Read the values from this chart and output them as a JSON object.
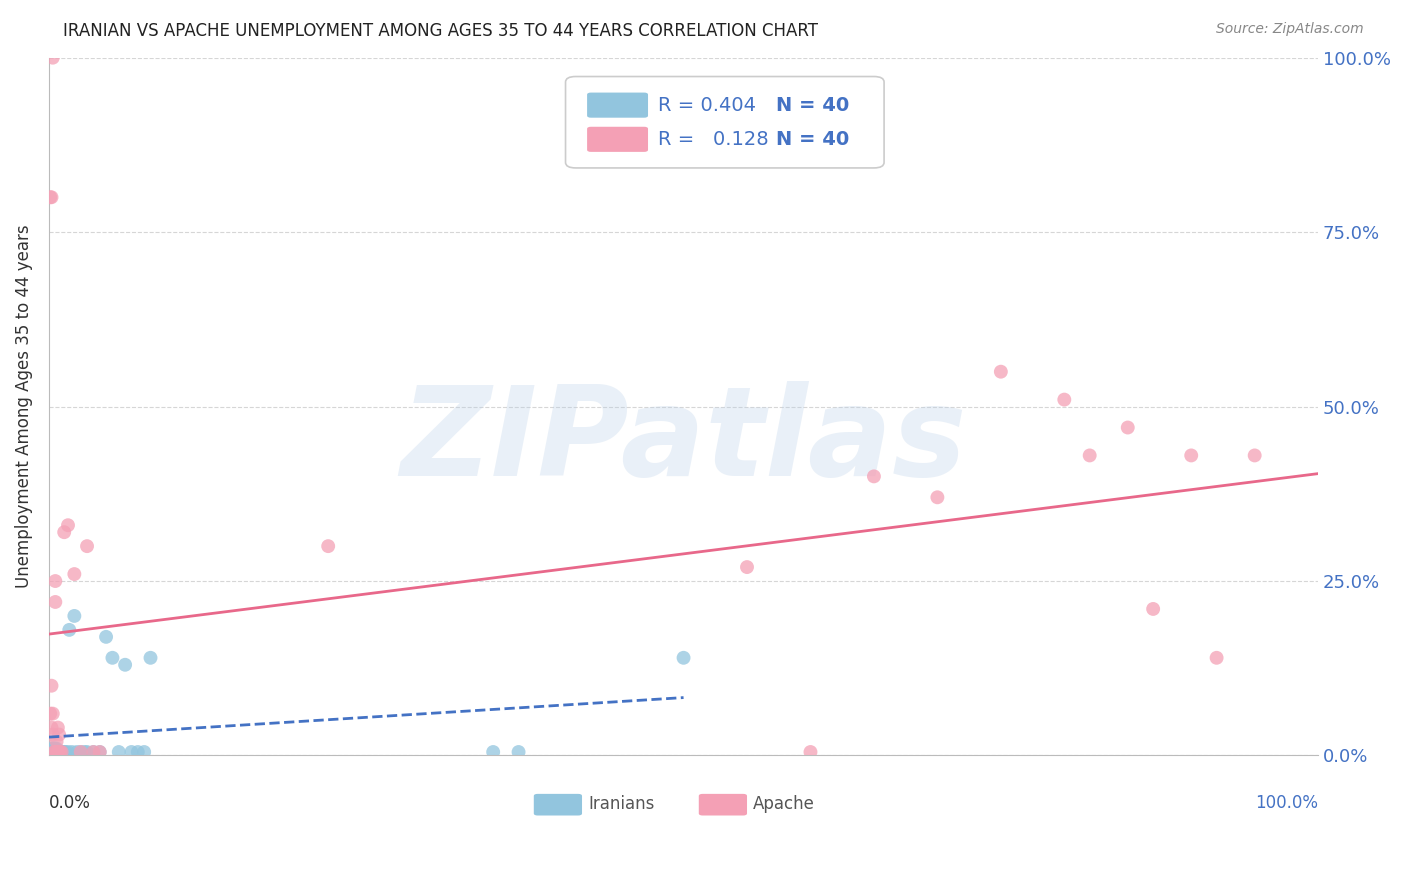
{
  "title": "IRANIAN VS APACHE UNEMPLOYMENT AMONG AGES 35 TO 44 YEARS CORRELATION CHART",
  "source": "Source: ZipAtlas.com",
  "ylabel": "Unemployment Among Ages 35 to 44 years",
  "ytick_values": [
    0.0,
    0.25,
    0.5,
    0.75,
    1.0
  ],
  "xlim": [
    0.0,
    1.0
  ],
  "ylim": [
    0.0,
    1.0
  ],
  "right_axis_color": "#4472c4",
  "iranian_dot_color": "#92c5de",
  "apache_dot_color": "#f4a0b5",
  "iranian_line_color": "#4472c4",
  "apache_line_color": "#e8688a",
  "grid_color": "#cccccc",
  "background_color": "#ffffff",
  "title_color": "#333333",
  "dot_size": 100,
  "dot_alpha": 0.75,
  "watermark_text": "ZIPatlas",
  "legend_R_iranian": "0.404",
  "legend_N_iranian": "40",
  "legend_R_apache": "0.128",
  "legend_N_apache": "40",
  "iranians_x": [
    0.001,
    0.002,
    0.002,
    0.003,
    0.003,
    0.004,
    0.004,
    0.005,
    0.005,
    0.006,
    0.006,
    0.007,
    0.007,
    0.008,
    0.009,
    0.01,
    0.01,
    0.012,
    0.013,
    0.015,
    0.016,
    0.018,
    0.02,
    0.022,
    0.025,
    0.028,
    0.03,
    0.035,
    0.04,
    0.045,
    0.05,
    0.055,
    0.06,
    0.065,
    0.07,
    0.075,
    0.08,
    0.35,
    0.37,
    0.5
  ],
  "iranians_y": [
    0.005,
    0.005,
    0.01,
    0.005,
    0.01,
    0.005,
    0.01,
    0.005,
    0.01,
    0.005,
    0.01,
    0.005,
    0.005,
    0.005,
    0.005,
    0.005,
    0.005,
    0.005,
    0.005,
    0.005,
    0.18,
    0.005,
    0.2,
    0.005,
    0.005,
    0.005,
    0.005,
    0.005,
    0.005,
    0.17,
    0.14,
    0.005,
    0.13,
    0.005,
    0.005,
    0.005,
    0.14,
    0.005,
    0.005,
    0.14
  ],
  "apache_x": [
    0.001,
    0.002,
    0.002,
    0.003,
    0.003,
    0.005,
    0.005,
    0.006,
    0.007,
    0.008,
    0.01,
    0.012,
    0.015,
    0.02,
    0.025,
    0.03,
    0.035,
    0.04,
    0.22,
    0.55,
    0.6,
    0.65,
    0.7,
    0.75,
    0.8,
    0.82,
    0.85,
    0.87,
    0.9,
    0.92,
    0.001,
    0.002,
    0.003,
    0.004,
    0.005,
    0.006,
    0.007,
    0.008,
    0.009,
    0.95
  ],
  "apache_y": [
    0.06,
    0.1,
    0.04,
    0.03,
    0.06,
    0.25,
    0.22,
    0.02,
    0.04,
    0.03,
    0.005,
    0.32,
    0.33,
    0.26,
    0.005,
    0.3,
    0.005,
    0.005,
    0.3,
    0.27,
    0.005,
    0.4,
    0.37,
    0.55,
    0.51,
    0.43,
    0.47,
    0.21,
    0.43,
    0.14,
    0.8,
    0.8,
    1.0,
    0.005,
    0.005,
    0.005,
    0.005,
    0.005,
    0.005,
    0.43
  ],
  "iranian_line_x0": 0.0,
  "iranian_line_x1": 0.5,
  "apache_line_x0": 0.0,
  "apache_line_x1": 1.0
}
